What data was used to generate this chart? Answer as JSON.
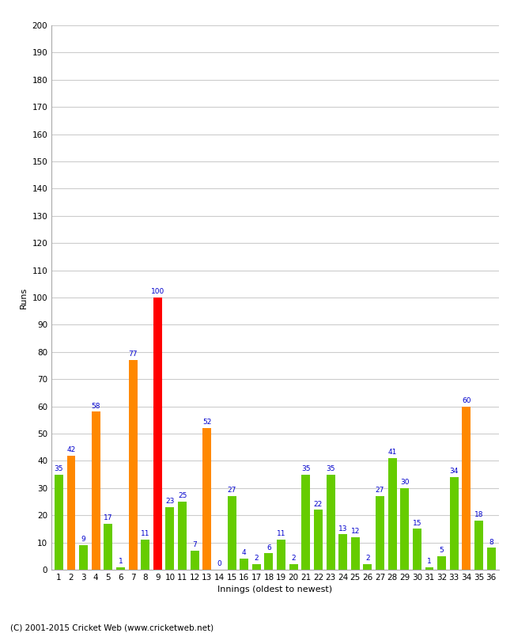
{
  "innings": [
    1,
    2,
    3,
    4,
    5,
    6,
    7,
    8,
    9,
    10,
    11,
    12,
    13,
    14,
    15,
    16,
    17,
    18,
    19,
    20,
    21,
    22,
    23,
    24,
    25,
    26,
    27,
    28,
    29,
    30,
    31,
    32,
    33,
    34,
    35,
    36
  ],
  "values": [
    35,
    42,
    9,
    58,
    17,
    1,
    77,
    11,
    100,
    23,
    25,
    7,
    52,
    0,
    27,
    4,
    2,
    6,
    11,
    2,
    35,
    22,
    35,
    13,
    12,
    2,
    27,
    41,
    30,
    15,
    1,
    5,
    34,
    60,
    18,
    8
  ],
  "colors": [
    "#66cc00",
    "#ff8800",
    "#66cc00",
    "#ff8800",
    "#66cc00",
    "#66cc00",
    "#ff8800",
    "#66cc00",
    "#ff0000",
    "#66cc00",
    "#66cc00",
    "#66cc00",
    "#ff8800",
    "#66cc00",
    "#66cc00",
    "#66cc00",
    "#66cc00",
    "#66cc00",
    "#66cc00",
    "#66cc00",
    "#66cc00",
    "#66cc00",
    "#66cc00",
    "#66cc00",
    "#66cc00",
    "#66cc00",
    "#66cc00",
    "#66cc00",
    "#66cc00",
    "#66cc00",
    "#66cc00",
    "#66cc00",
    "#66cc00",
    "#ff8800",
    "#66cc00",
    "#66cc00"
  ],
  "xlabel": "Innings (oldest to newest)",
  "ylabel": "Runs",
  "ylim": [
    0,
    200
  ],
  "yticks": [
    0,
    10,
    20,
    30,
    40,
    50,
    60,
    70,
    80,
    90,
    100,
    110,
    120,
    130,
    140,
    150,
    160,
    170,
    180,
    190,
    200
  ],
  "bg_color": "#ffffff",
  "footer": "(C) 2001-2015 Cricket Web (www.cricketweb.net)",
  "label_color": "#0000cc",
  "label_fontsize": 6.5,
  "tick_fontsize": 7.5,
  "axis_label_fontsize": 8
}
